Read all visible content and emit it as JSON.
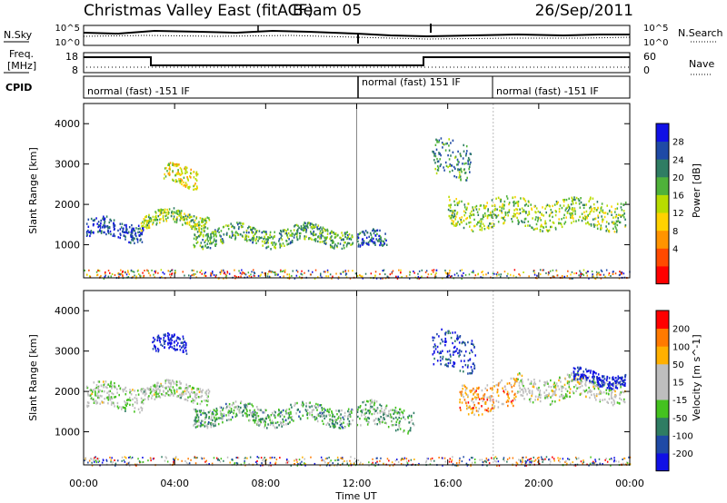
{
  "header": {
    "station": "Christmas Valley East (fitACF)",
    "beam": "Beam 05",
    "date": "26/Sep/2011"
  },
  "noise_panel": {
    "left_label": "N.Sky",
    "right_label": "N.Search",
    "y_ticks": [
      "10^5",
      "10^0"
    ]
  },
  "freq_panel": {
    "left_label_1": "Freq.",
    "left_label_2": "[MHz]",
    "right_label": "Nave",
    "left_ticks": [
      "18",
      "8"
    ],
    "right_ticks": [
      "60",
      "0"
    ]
  },
  "cpid_panel": {
    "label": "CPID",
    "segments": [
      {
        "text": "normal (fast) -151 IF",
        "start_hour": 0.0,
        "end_hour": 12.0
      },
      {
        "text": "normal (fast) 151 IF",
        "start_hour": 12.0,
        "end_hour": 18.0
      },
      {
        "text": "normal (fast) -151 IF",
        "start_hour": 18.0,
        "end_hour": 24.0
      }
    ]
  },
  "x_axis": {
    "label": "Time UT",
    "ticks": [
      "00:00",
      "04:00",
      "08:00",
      "12:00",
      "16:00",
      "20:00",
      "00:00"
    ]
  },
  "chart_data": [
    {
      "type": "heatmap",
      "title": "Power",
      "ylabel": "Slant Range [km]",
      "xlabel": "Time UT",
      "xlim": [
        0,
        24
      ],
      "ylim": [
        180,
        4500
      ],
      "y_ticks": [
        1000,
        2000,
        3000,
        4000
      ],
      "colorbar": {
        "label": "Power [dB]",
        "ticks": [
          "28",
          "24",
          "20",
          "16",
          "12",
          "8",
          "4"
        ],
        "colors": [
          "#ff0000",
          "#ff4a00",
          "#ff9400",
          "#ffd200",
          "#b8dc00",
          "#4fb23a",
          "#2f7d63",
          "#1f4aa6",
          "#1010e6"
        ]
      },
      "bands": [
        {
          "t_start": 0.1,
          "t_end": 2.6,
          "range_center": 1400,
          "thickness": 450,
          "level": 0.85
        },
        {
          "t_start": 2.5,
          "t_end": 5.5,
          "range_center": 1650,
          "thickness": 350,
          "level": 0.55
        },
        {
          "t_start": 4.8,
          "t_end": 11.8,
          "range_center": 1250,
          "thickness": 420,
          "level": 0.65
        },
        {
          "t_start": 3.5,
          "t_end": 5.0,
          "range_center": 2700,
          "thickness": 500,
          "level": 0.45
        },
        {
          "t_start": 12.0,
          "t_end": 13.3,
          "range_center": 1100,
          "thickness": 400,
          "level": 0.8
        },
        {
          "t_start": 15.3,
          "t_end": 17.0,
          "range_center": 3100,
          "thickness": 900,
          "level": 0.7
        },
        {
          "t_start": 16.0,
          "t_end": 23.8,
          "range_center": 1800,
          "thickness": 700,
          "level": 0.55
        }
      ]
    },
    {
      "type": "heatmap",
      "title": "Velocity",
      "ylabel": "Slant Range [km]",
      "xlabel": "Time UT",
      "xlim": [
        0,
        24
      ],
      "ylim": [
        180,
        4500
      ],
      "y_ticks": [
        1000,
        2000,
        3000,
        4000
      ],
      "colorbar": {
        "label": "Velocity [m s^-1]",
        "ticks": [
          "200",
          "100",
          "50",
          "15",
          "-15",
          "-50",
          "-100",
          "-200"
        ],
        "colors": [
          "#1010e6",
          "#1f4aa6",
          "#2f7d63",
          "#44c21f",
          "#bebebe",
          "#bebebe",
          "#ffb000",
          "#ff7a00",
          "#ff0000"
        ]
      },
      "bands": [
        {
          "t_start": 0.1,
          "t_end": 2.6,
          "range_center": 1900,
          "thickness": 600,
          "level": 0.5
        },
        {
          "t_start": 2.5,
          "t_end": 5.5,
          "range_center": 2000,
          "thickness": 400,
          "level": 0.5
        },
        {
          "t_start": 3.0,
          "t_end": 4.5,
          "range_center": 3150,
          "thickness": 400,
          "level": 0.05
        },
        {
          "t_start": 4.8,
          "t_end": 11.8,
          "range_center": 1450,
          "thickness": 450,
          "level": 0.38
        },
        {
          "t_start": 12.0,
          "t_end": 14.5,
          "range_center": 1400,
          "thickness": 600,
          "level": 0.4
        },
        {
          "t_start": 15.3,
          "t_end": 17.2,
          "range_center": 3000,
          "thickness": 900,
          "level": 0.1
        },
        {
          "t_start": 16.5,
          "t_end": 19.0,
          "range_center": 1900,
          "thickness": 700,
          "level": 0.75
        },
        {
          "t_start": 19.0,
          "t_end": 23.8,
          "range_center": 2100,
          "thickness": 600,
          "level": 0.55
        },
        {
          "t_start": 21.5,
          "t_end": 23.8,
          "range_center": 2350,
          "thickness": 300,
          "level": 0.05
        }
      ]
    }
  ]
}
